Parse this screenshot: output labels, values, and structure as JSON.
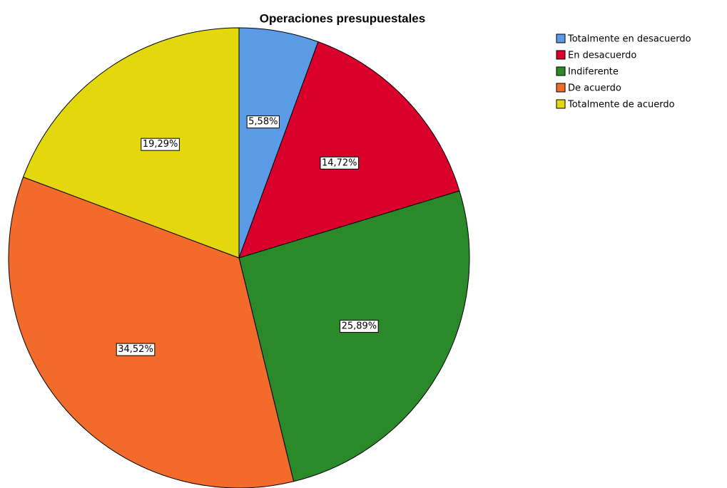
{
  "chart_data": {
    "type": "pie",
    "title": "Operaciones presupuestales",
    "categories": [
      "Totalmente en desacuerdo",
      "En desacuerdo",
      "Indiferente",
      "De acuerdo",
      "Totalmente de acuerdo"
    ],
    "values": [
      5.58,
      14.72,
      25.89,
      34.52,
      19.29
    ],
    "value_labels": [
      "5,58%",
      "14,72%",
      "25,89%",
      "34,52%",
      "19,29%"
    ],
    "colors": [
      "#5b9be6",
      "#d9002b",
      "#2a8a2a",
      "#f26b2b",
      "#e2d80d"
    ],
    "legend": "top-right"
  }
}
